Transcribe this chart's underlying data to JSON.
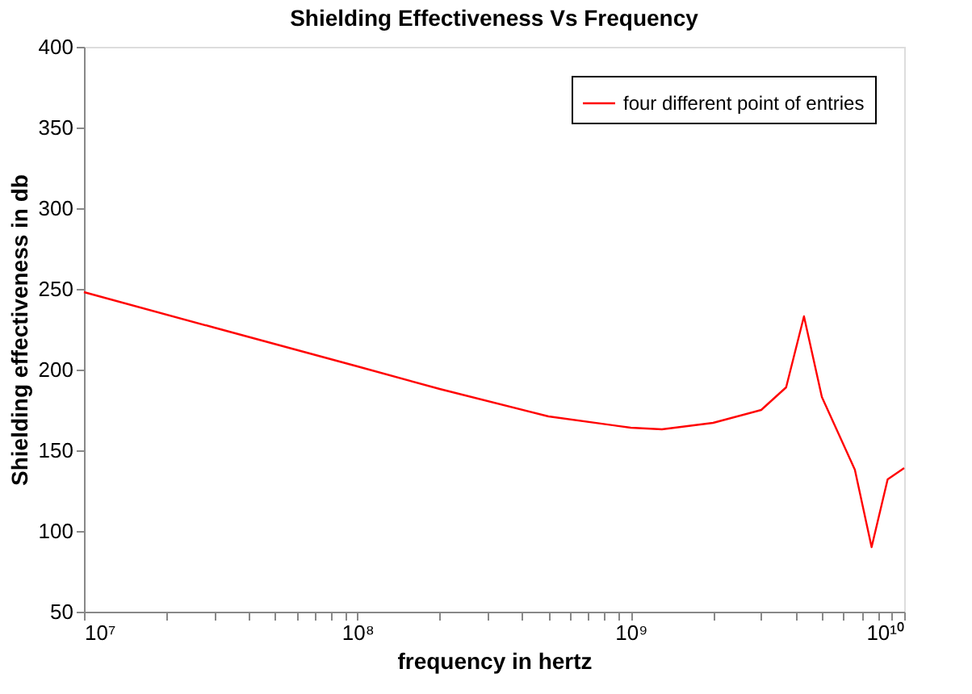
{
  "chart_data": {
    "type": "line",
    "title": "Shielding Effectiveness Vs Frequency",
    "xlabel": "frequency in hertz",
    "ylabel": "Shielding effectiveness in db",
    "x": [
      10000000.0,
      30000000.0,
      100000000.0,
      200000000.0,
      500000000.0,
      1000000000.0,
      1300000000.0,
      2000000000.0,
      3000000000.0,
      3700000000.0,
      4300000000.0,
      5000000000.0,
      6600000000.0,
      7600000000.0,
      8700000000.0,
      10000000000.0
    ],
    "series": [
      {
        "name": "four different point of entries",
        "color": "#ff0000",
        "values": [
          248,
          226,
          202,
          188,
          171,
          164,
          163,
          167,
          175,
          189,
          233,
          183,
          138,
          90,
          132,
          139
        ]
      }
    ],
    "log": "x",
    "xlim": [
      10000000.0,
      10000000000.0
    ],
    "ylim": [
      50,
      400
    ],
    "xticks": [
      {
        "value": 10000000.0,
        "label": "10⁷"
      },
      {
        "value": 20000000.0,
        "label": null
      },
      {
        "value": 30000000.0,
        "label": null
      },
      {
        "value": 40000000.0,
        "label": null
      },
      {
        "value": 50000000.0,
        "label": null
      },
      {
        "value": 60000000.0,
        "label": null
      },
      {
        "value": 70000000.0,
        "label": null
      },
      {
        "value": 80000000.0,
        "label": null
      },
      {
        "value": 90000000.0,
        "label": null
      },
      {
        "value": 100000000.0,
        "label": "10⁸"
      },
      {
        "value": 200000000.0,
        "label": null
      },
      {
        "value": 300000000.0,
        "label": null
      },
      {
        "value": 400000000.0,
        "label": null
      },
      {
        "value": 500000000.0,
        "label": null
      },
      {
        "value": 600000000.0,
        "label": null
      },
      {
        "value": 700000000.0,
        "label": null
      },
      {
        "value": 800000000.0,
        "label": null
      },
      {
        "value": 900000000.0,
        "label": null
      },
      {
        "value": 1000000000.0,
        "label": "10⁹"
      },
      {
        "value": 2000000000.0,
        "label": null
      },
      {
        "value": 3000000000.0,
        "label": null
      },
      {
        "value": 4000000000.0,
        "label": null
      },
      {
        "value": 5000000000.0,
        "label": null
      },
      {
        "value": 6000000000.0,
        "label": null
      },
      {
        "value": 7000000000.0,
        "label": null
      },
      {
        "value": 8000000000.0,
        "label": null
      },
      {
        "value": 9000000000.0,
        "label": null
      },
      {
        "value": 10000000000.0,
        "label": "10¹⁰"
      }
    ],
    "yticks": [
      50,
      100,
      150,
      200,
      250,
      300,
      350,
      400
    ],
    "grid": false,
    "legend": "top right",
    "marker": "none",
    "line_style": "solid"
  }
}
